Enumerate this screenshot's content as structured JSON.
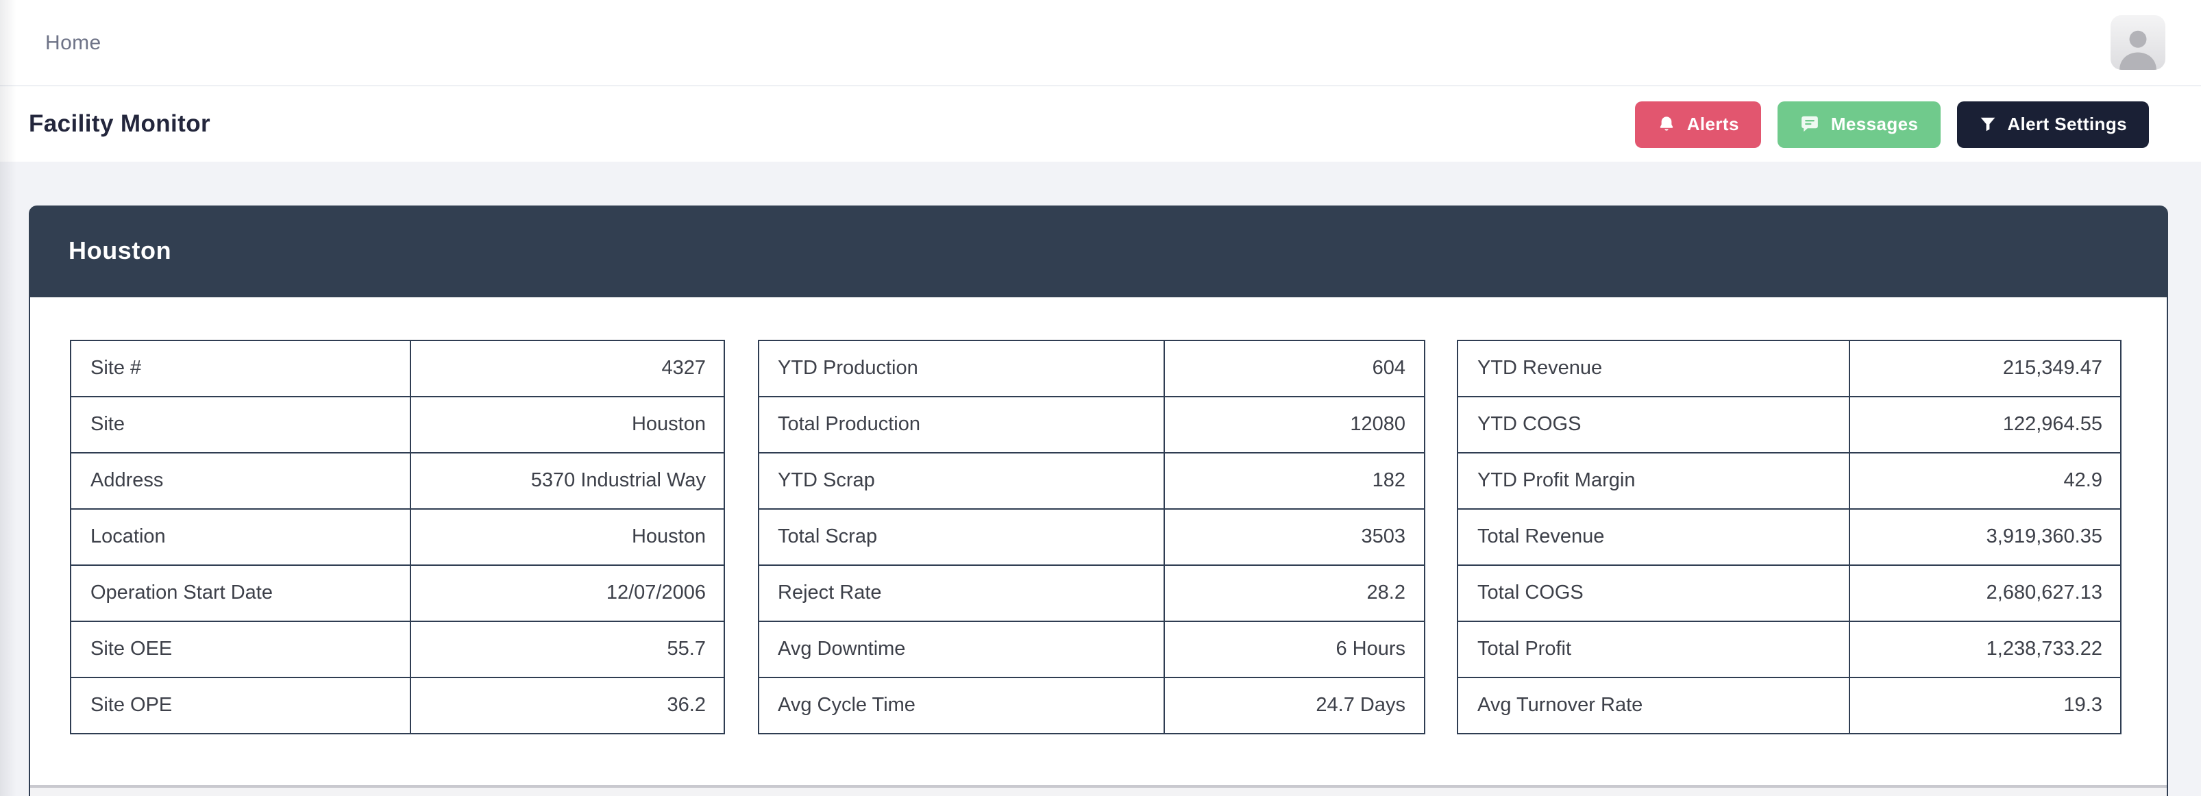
{
  "topbar": {
    "breadcrumb": "Home"
  },
  "header": {
    "title": "Facility Monitor",
    "buttons": {
      "alerts": "Alerts",
      "messages": "Messages",
      "settings": "Alert Settings"
    }
  },
  "card": {
    "title": "Houston",
    "tables": [
      {
        "name": "site-info",
        "rows": [
          {
            "label": "Site #",
            "value": "4327"
          },
          {
            "label": "Site",
            "value": "Houston"
          },
          {
            "label": "Address",
            "value": "5370 Industrial Way"
          },
          {
            "label": "Location",
            "value": "Houston"
          },
          {
            "label": "Operation Start Date",
            "value": "12/07/2006"
          },
          {
            "label": "Site OEE",
            "value": "55.7"
          },
          {
            "label": "Site OPE",
            "value": "36.2"
          }
        ]
      },
      {
        "name": "production",
        "rows": [
          {
            "label": "YTD Production",
            "value": "604"
          },
          {
            "label": "Total Production",
            "value": "12080"
          },
          {
            "label": "YTD Scrap",
            "value": "182"
          },
          {
            "label": "Total Scrap",
            "value": "3503"
          },
          {
            "label": "Reject Rate",
            "value": "28.2"
          },
          {
            "label": "Avg Downtime",
            "value": "6 Hours"
          },
          {
            "label": "Avg Cycle Time",
            "value": "24.7 Days"
          }
        ]
      },
      {
        "name": "financials",
        "rows": [
          {
            "label": "YTD Revenue",
            "value": "215,349.47"
          },
          {
            "label": "YTD COGS",
            "value": "122,964.55"
          },
          {
            "label": "YTD Profit Margin",
            "value": "42.9"
          },
          {
            "label": "Total Revenue",
            "value": "3,919,360.35"
          },
          {
            "label": "Total COGS",
            "value": "2,680,627.13"
          },
          {
            "label": "Total Profit",
            "value": "1,238,733.22"
          },
          {
            "label": "Avg Turnover Rate",
            "value": "19.3"
          }
        ]
      }
    ]
  },
  "colors": {
    "alerts": "#e2566f",
    "messages": "#70ca8c",
    "alert_settings": "#1a2035",
    "card_header": "#323f51",
    "table_border": "#2f3d52"
  }
}
